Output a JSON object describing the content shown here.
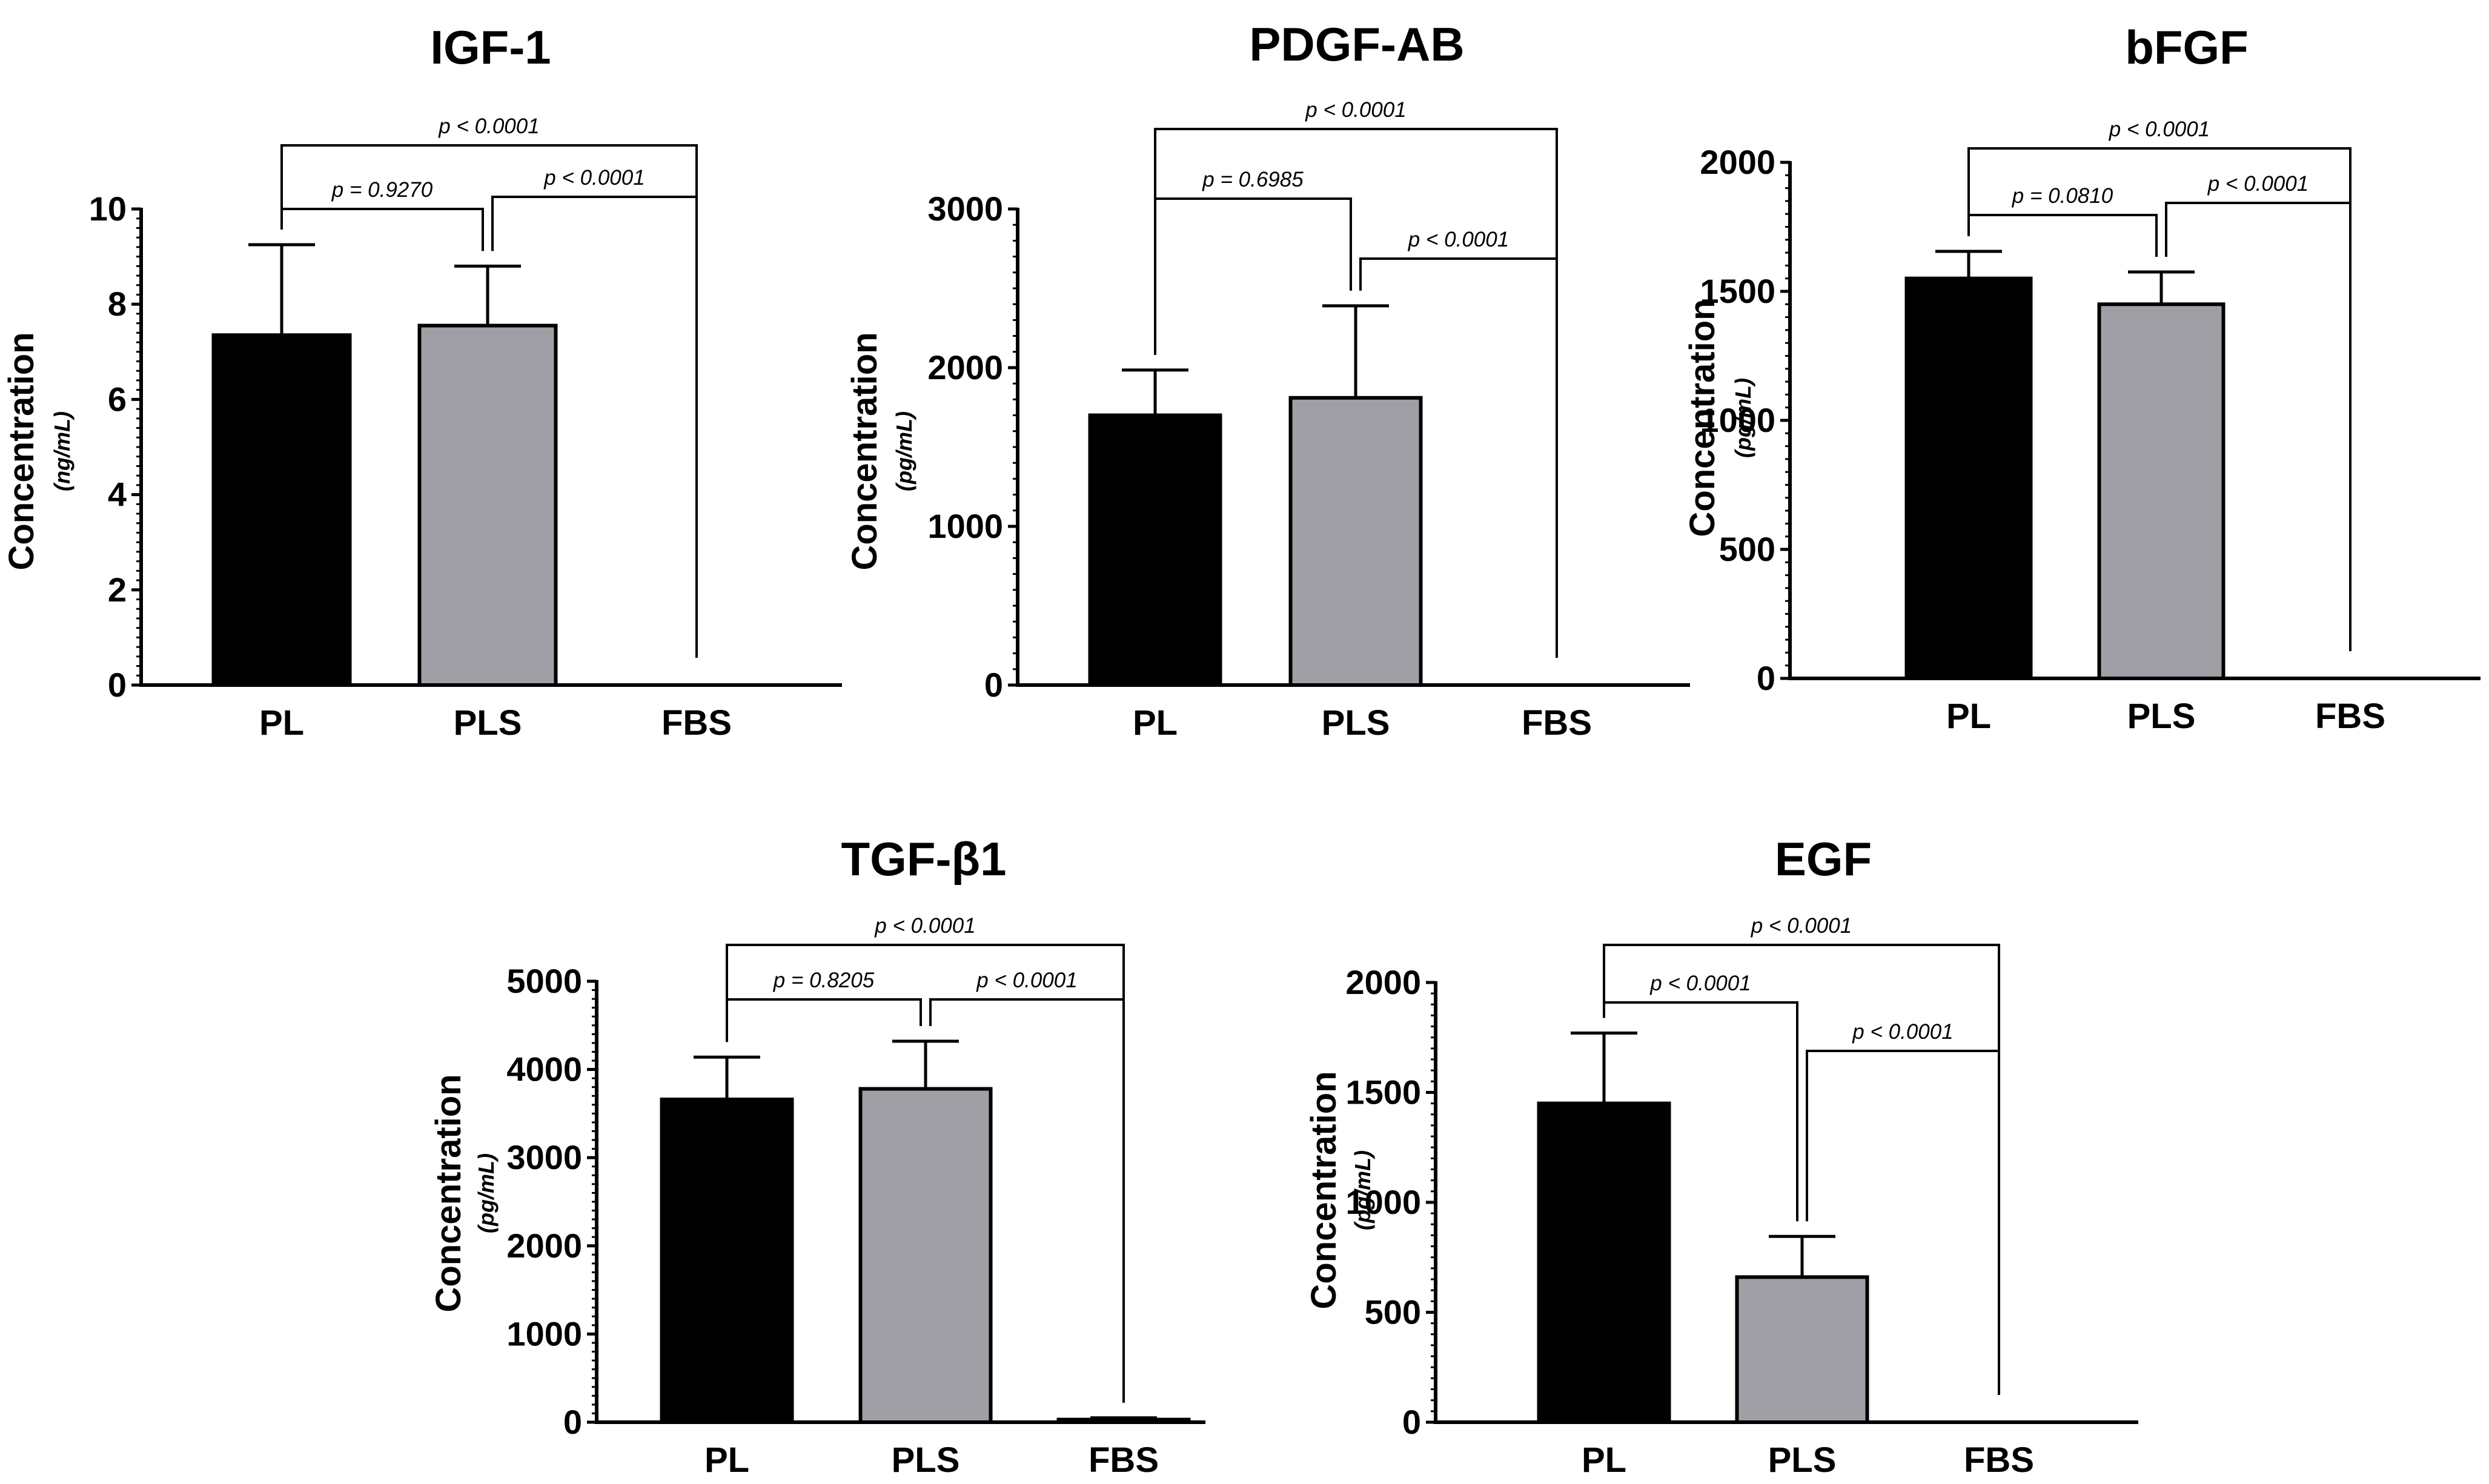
{
  "colors": {
    "pl": "#000000",
    "pls": "#a19fa6",
    "fbs": "#ffffff",
    "axis": "#000000"
  },
  "chart_data": [
    {
      "type": "bar",
      "title": "IGF-1",
      "ylabel": "Concentration",
      "unit": "(ng/mL)",
      "categories": [
        "PL",
        "PLS",
        "FBS"
      ],
      "values": [
        7.35,
        7.55,
        0
      ],
      "errors": [
        1.9,
        1.25,
        0
      ],
      "ylim": [
        0,
        10
      ],
      "yticks": [
        "0",
        "2",
        "4",
        "6",
        "8",
        "10"
      ],
      "yticks_values": [
        0,
        2,
        4,
        6,
        8,
        10
      ],
      "comparisons": [
        {
          "groups": [
            "PL",
            "PLS"
          ],
          "label": "p = 0.9270"
        },
        {
          "groups": [
            "PLS",
            "FBS"
          ],
          "label": "p < 0.0001"
        },
        {
          "groups": [
            "PL",
            "FBS"
          ],
          "label": "p < 0.0001"
        }
      ]
    },
    {
      "type": "bar",
      "title": "PDGF-AB",
      "ylabel": "Concentration",
      "unit": "(pg/mL)",
      "categories": [
        "PL",
        "PLS",
        "FBS"
      ],
      "values": [
        1700,
        1810,
        0
      ],
      "errors": [
        285,
        580,
        0
      ],
      "ylim": [
        0,
        3000
      ],
      "yticks": [
        "0",
        "1000",
        "2000",
        "3000"
      ],
      "yticks_values": [
        0,
        1000,
        2000,
        3000
      ],
      "comparisons": [
        {
          "groups": [
            "PL",
            "PLS"
          ],
          "label": "p = 0.6985"
        },
        {
          "groups": [
            "PLS",
            "FBS"
          ],
          "label": "p < 0.0001"
        },
        {
          "groups": [
            "PL",
            "FBS"
          ],
          "label": "p < 0.0001"
        }
      ]
    },
    {
      "type": "bar",
      "title": "bFGF",
      "ylabel": "Concentration",
      "unit": "(pg/mL)",
      "categories": [
        "PL",
        "PLS",
        "FBS"
      ],
      "values": [
        1550,
        1450,
        0
      ],
      "errors": [
        105,
        125,
        0
      ],
      "ylim": [
        0,
        2000
      ],
      "yticks": [
        "0",
        "500",
        "1000",
        "1500",
        "2000"
      ],
      "yticks_values": [
        0,
        500,
        1000,
        1500,
        2000
      ],
      "comparisons": [
        {
          "groups": [
            "PL",
            "PLS"
          ],
          "label": "p = 0.0810"
        },
        {
          "groups": [
            "PLS",
            "FBS"
          ],
          "label": "p < 0.0001"
        },
        {
          "groups": [
            "PL",
            "FBS"
          ],
          "label": "p < 0.0001"
        }
      ]
    },
    {
      "type": "bar",
      "title": "TGF-β1",
      "ylabel": "Concentration",
      "unit": "(pg/mL)",
      "categories": [
        "PL",
        "PLS",
        "FBS"
      ],
      "values": [
        3660,
        3780,
        30
      ],
      "errors": [
        480,
        540,
        20
      ],
      "ylim": [
        0,
        5000
      ],
      "yticks": [
        "0",
        "1000",
        "2000",
        "3000",
        "4000",
        "5000"
      ],
      "yticks_values": [
        0,
        1000,
        2000,
        3000,
        4000,
        5000
      ],
      "comparisons": [
        {
          "groups": [
            "PL",
            "PLS"
          ],
          "label": "p = 0.8205"
        },
        {
          "groups": [
            "PLS",
            "FBS"
          ],
          "label": "p < 0.0001"
        },
        {
          "groups": [
            "PL",
            "FBS"
          ],
          "label": "p < 0.0001"
        }
      ]
    },
    {
      "type": "bar",
      "title": "EGF",
      "ylabel": "Concentration",
      "unit": "(pg/mL)",
      "categories": [
        "PL",
        "PLS",
        "FBS"
      ],
      "values": [
        1450,
        660,
        0
      ],
      "errors": [
        320,
        185,
        0
      ],
      "ylim": [
        0,
        2000
      ],
      "yticks": [
        "0",
        "500",
        "1000",
        "1500",
        "2000"
      ],
      "yticks_values": [
        0,
        500,
        1000,
        1500,
        2000
      ],
      "comparisons": [
        {
          "groups": [
            "PL",
            "PLS"
          ],
          "label": "p < 0.0001"
        },
        {
          "groups": [
            "PLS",
            "FBS"
          ],
          "label": "p < 0.0001"
        },
        {
          "groups": [
            "PL",
            "FBS"
          ],
          "label": "p < 0.0001"
        }
      ]
    }
  ]
}
